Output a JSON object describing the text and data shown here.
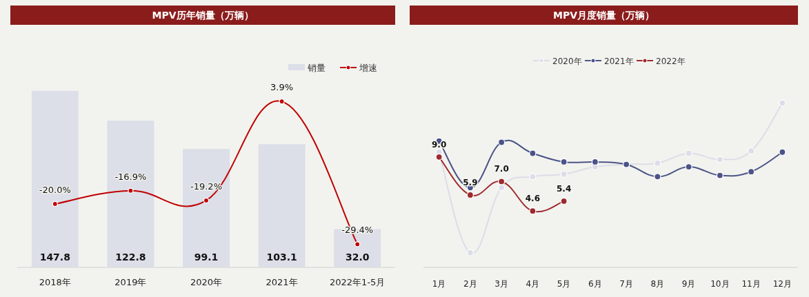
{
  "chart_data": [
    {
      "type": "bar",
      "title": "MPV历年销量（万辆）",
      "categories": [
        "2018年",
        "2019年",
        "2020年",
        "2021年",
        "2022年1-5月"
      ],
      "ylim": [
        0,
        169
      ],
      "y2lim": [
        -34.8,
        12.3
      ],
      "tick_labels": "x",
      "legend": "top right",
      "series": [
        {
          "name": "销量",
          "color": "#dcdee8",
          "values": [
            147.8,
            122.8,
            99.1,
            103.1,
            32.0
          ],
          "value_labels": [
            "147.8",
            "122.8",
            "99.1",
            "103.1",
            "32.0"
          ]
        },
        {
          "name": "增速",
          "type": "line",
          "axis": "y2",
          "color": "#c00000",
          "marker": "circle",
          "values": [
            -20.0,
            -16.9,
            -19.2,
            3.9,
            -29.4
          ],
          "value_labels": [
            "-20.0%",
            "-16.9%",
            "-19.2%",
            "3.9%",
            "-29.4%"
          ]
        }
      ]
    },
    {
      "type": "line",
      "title": "MPV月度销量（万辆）",
      "categories": [
        "1月",
        "2月",
        "3月",
        "4月",
        "5月",
        "6月",
        "7月",
        "8月",
        "9月",
        "10月",
        "11月",
        "12月"
      ],
      "tick_labels": "x",
      "legend": "top",
      "marker": "circle",
      "series": [
        {
          "name": "2020年",
          "color": "#dcdde8",
          "values": [
            9.4,
            1.2,
            6.5,
            7.4,
            7.6,
            8.2,
            8.4,
            8.5,
            9.3,
            8.8,
            9.5,
            13.4
          ]
        },
        {
          "name": "2021年",
          "color": "#4b5388",
          "values": [
            10.3,
            6.5,
            10.2,
            9.3,
            8.6,
            8.6,
            8.4,
            7.4,
            8.2,
            7.5,
            7.8,
            9.4
          ]
        },
        {
          "name": "2022年",
          "color": "#9e2a2f",
          "values": [
            9.0,
            5.9,
            7.0,
            4.6,
            5.4,
            null,
            null,
            null,
            null,
            null,
            null,
            null
          ],
          "value_labels": [
            "9.0",
            "5.9",
            "7.0",
            "4.6",
            "5.4",
            null,
            null,
            null,
            null,
            null,
            null,
            null
          ]
        }
      ]
    }
  ]
}
